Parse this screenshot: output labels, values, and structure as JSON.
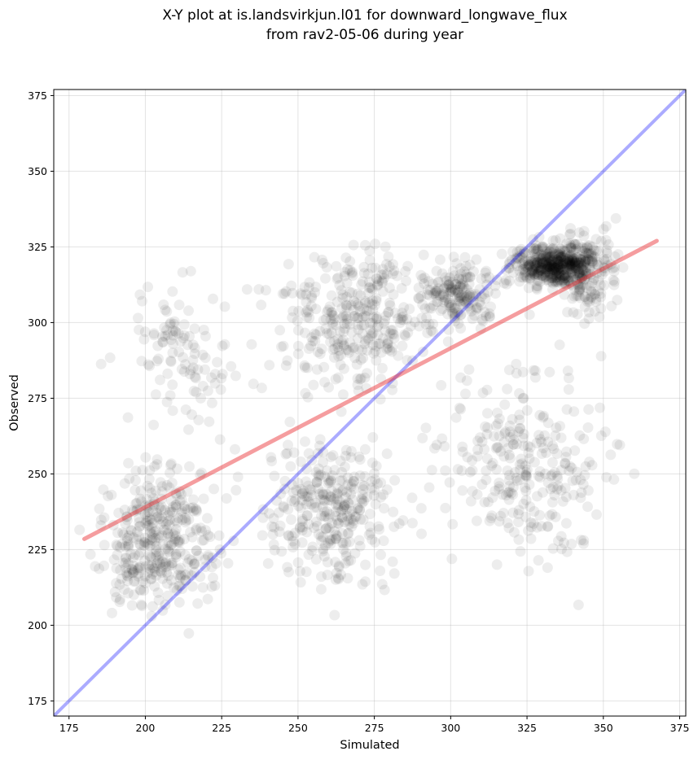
{
  "chart_data": {
    "type": "scatter",
    "title": [
      "X-Y plot at is.landsvirkjun.l01 for downward_longwave_flux",
      "from rav2-05-06 during year"
    ],
    "xlabel": "Simulated",
    "ylabel": "Observed",
    "xlim": [
      170,
      377
    ],
    "ylim": [
      170,
      377
    ],
    "xticks": [
      175,
      200,
      225,
      250,
      275,
      300,
      325,
      350,
      375
    ],
    "yticks": [
      175,
      200,
      225,
      250,
      275,
      300,
      325,
      350,
      375
    ],
    "grid": true,
    "point_color": "#000000",
    "point_alpha": 0.07,
    "identity_line": {
      "color": "#0000ff",
      "alpha": 0.33,
      "x": [
        170,
        377
      ],
      "y": [
        170,
        377
      ]
    },
    "fit_line": {
      "color": "#e8262b",
      "alpha": 0.45,
      "x": [
        180,
        367.5
      ],
      "y": [
        228.5,
        327
      ]
    },
    "clusters": [
      {
        "x": [
          180,
          230
        ],
        "y": [
          195,
          260
        ],
        "n": 380
      },
      {
        "x": [
          185,
          240
        ],
        "y": [
          260,
          320
        ],
        "n": 110
      },
      {
        "x": [
          230,
          290
        ],
        "y": [
          205,
          270
        ],
        "n": 320
      },
      {
        "x": [
          235,
          300
        ],
        "y": [
          270,
          332
        ],
        "n": 330
      },
      {
        "x": [
          290,
          360
        ],
        "y": [
          205,
          300
        ],
        "n": 280
      },
      {
        "x": [
          285,
          320
        ],
        "y": [
          295,
          325
        ],
        "n": 180
      },
      {
        "x": [
          315,
          352
        ],
        "y": [
          310,
          328
        ],
        "n": 480
      },
      {
        "x": [
          330,
          360
        ],
        "y": [
          295,
          336
        ],
        "n": 150
      }
    ]
  }
}
